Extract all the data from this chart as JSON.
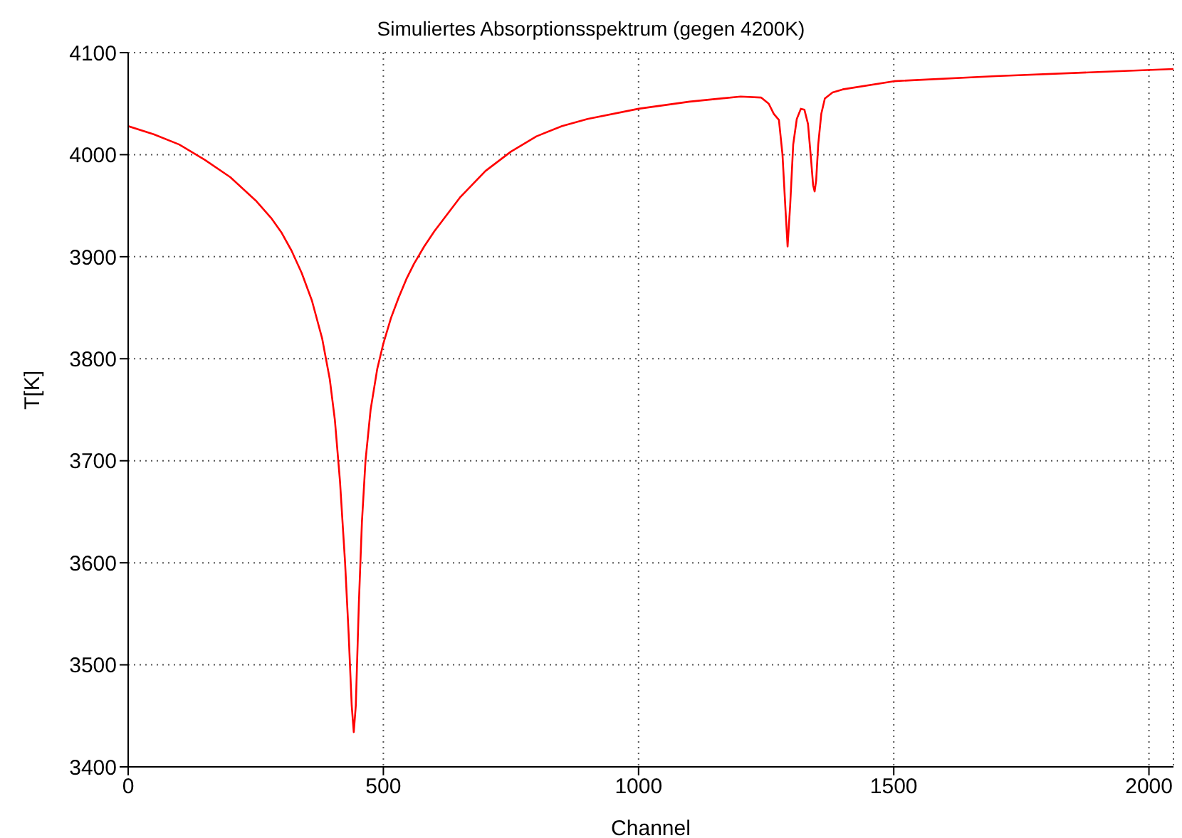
{
  "chart_data": {
    "type": "line",
    "title": "Simuliertes Absorptionsspektrum (gegen 4200K)",
    "xlabel": "Channel",
    "ylabel": "T[K]",
    "x": [
      0,
      50,
      100,
      150,
      200,
      250,
      280,
      300,
      320,
      340,
      360,
      380,
      395,
      405,
      415,
      425,
      432,
      438,
      442,
      446,
      452,
      458,
      465,
      475,
      488,
      500,
      515,
      530,
      545,
      560,
      580,
      600,
      650,
      700,
      750,
      800,
      850,
      900,
      1000,
      1100,
      1200,
      1240,
      1255,
      1265,
      1275,
      1282,
      1288,
      1292,
      1297,
      1303,
      1310,
      1318,
      1325,
      1332,
      1338,
      1342,
      1345,
      1348,
      1352,
      1358,
      1365,
      1380,
      1400,
      1500,
      1700,
      1900,
      2048
    ],
    "series": [
      {
        "color": "#ff0000",
        "values": [
          4028,
          4020,
          4010,
          3995,
          3978,
          3955,
          3938,
          3924,
          3906,
          3884,
          3857,
          3820,
          3780,
          3740,
          3680,
          3600,
          3530,
          3460,
          3434,
          3460,
          3560,
          3640,
          3700,
          3750,
          3790,
          3815,
          3840,
          3860,
          3878,
          3893,
          3910,
          3925,
          3958,
          3984,
          4003,
          4018,
          4028,
          4035,
          4045,
          4052,
          4057,
          4056,
          4050,
          4040,
          4034,
          4000,
          3945,
          3910,
          3950,
          4010,
          4035,
          4045,
          4044,
          4030,
          3995,
          3970,
          3964,
          3975,
          4010,
          4040,
          4055,
          4061,
          4064,
          4072,
          4077,
          4081,
          4084
        ]
      }
    ],
    "xlim": [
      0,
      2048
    ],
    "xticks": [
      0,
      500,
      1000,
      1500,
      2000
    ],
    "ylim": [
      3400,
      4100
    ],
    "yticks": [
      3400,
      3500,
      3600,
      3700,
      3800,
      3900,
      4000,
      4100
    ],
    "grid": true,
    "marker": "none",
    "line_style": "solid"
  }
}
